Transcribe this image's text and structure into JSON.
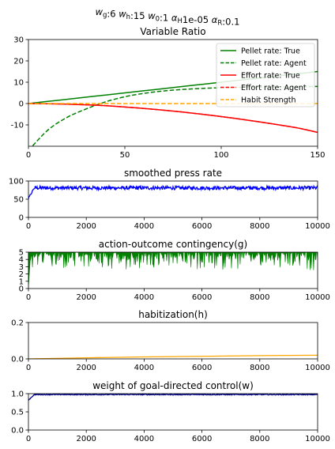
{
  "suptitle": "w_g:6 w_h:15 w_0:1 α_H1e-05 α_R:0.1",
  "suptitle_parts": [
    {
      "t": "w",
      "i": true
    },
    {
      "t": "g",
      "sub": true
    },
    {
      "t": ":6 "
    },
    {
      "t": "w",
      "i": true
    },
    {
      "t": "h",
      "sub": true
    },
    {
      "t": ":15 "
    },
    {
      "t": "w",
      "i": true
    },
    {
      "t": "0",
      "sub": true
    },
    {
      "t": ":1 "
    },
    {
      "t": "α",
      "i": true
    },
    {
      "t": "H",
      "sub": true
    },
    {
      "t": "1e-05 "
    },
    {
      "t": "α",
      "i": true
    },
    {
      "t": "R",
      "sub": true
    },
    {
      "t": ":0.1"
    }
  ],
  "colors": {
    "green": "#008000",
    "red": "#ff0000",
    "orange": "#ffa500",
    "blue": "#0000ff",
    "darkblue": "#00008b"
  },
  "chart_data": [
    {
      "type": "line",
      "title": "Variable Ratio",
      "xlim": [
        0,
        150
      ],
      "ylim": [
        -20,
        30
      ],
      "xticks": [
        0,
        50,
        100,
        150
      ],
      "yticks": [
        -10,
        0,
        10,
        20,
        30
      ],
      "legend_position": "top-right",
      "grid": false,
      "x": [
        0,
        10,
        20,
        30,
        40,
        50,
        60,
        70,
        80,
        90,
        100,
        110,
        120,
        130,
        140,
        150
      ],
      "series": [
        {
          "name": "Pellet rate: True",
          "color": "#008000",
          "style": "solid",
          "values": [
            0,
            1.0,
            2.0,
            3.0,
            4.0,
            5.0,
            6.0,
            7.0,
            8.0,
            9.0,
            10.0,
            11.0,
            12.0,
            13.0,
            14.0,
            15.0
          ]
        },
        {
          "name": "Pellet rate: Agent",
          "color": "#008000",
          "style": "dashed",
          "values": [
            -22,
            -12.5,
            -6.5,
            -2.5,
            0.8,
            3.2,
            4.8,
            5.9,
            6.6,
            7.1,
            7.4,
            7.6,
            7.7,
            7.8,
            7.9,
            8.0
          ]
        },
        {
          "name": "Effort rate: True",
          "color": "#ff0000",
          "style": "solid",
          "values": [
            0,
            -0.1,
            -0.3,
            -0.6,
            -1.0,
            -1.6,
            -2.3,
            -3.1,
            -4.0,
            -5.0,
            -6.1,
            -7.3,
            -8.6,
            -10.0,
            -11.5,
            -13.5
          ]
        },
        {
          "name": "Effort rate: Agent",
          "color": "#ff0000",
          "style": "dashed",
          "values": [
            0,
            -0.1,
            -0.3,
            -0.6,
            -1.0,
            -1.6,
            -2.3,
            -3.1,
            -4.0,
            -5.0,
            -6.1,
            -7.3,
            -8.6,
            -10.0,
            -11.5,
            -13.5
          ]
        },
        {
          "name": "Habit Strength",
          "color": "#ffa500",
          "style": "dashed",
          "values": [
            0,
            0,
            0,
            0,
            0,
            0,
            0,
            0,
            0,
            0,
            0,
            0,
            0,
            0,
            0,
            0
          ]
        }
      ]
    },
    {
      "type": "line",
      "title": "smoothed press rate",
      "xlim": [
        0,
        10000
      ],
      "ylim": [
        0,
        100
      ],
      "xticks": [
        0,
        2000,
        4000,
        6000,
        8000,
        10000
      ],
      "yticks": [
        0,
        50,
        100
      ],
      "series": [
        {
          "name": "",
          "color": "#0000ff",
          "noise_mean": 81,
          "noise_amp": 5,
          "start": 52,
          "style": "solid"
        }
      ]
    },
    {
      "type": "area",
      "title": "action-outcome contingency(g)",
      "xlim": [
        0,
        10000
      ],
      "ylim": [
        0,
        5
      ],
      "xticks": [
        0,
        2000,
        4000,
        6000,
        8000,
        10000
      ],
      "yticks": [
        0,
        1,
        2,
        3,
        4,
        5
      ],
      "series": [
        {
          "name": "",
          "color": "#008000",
          "upper": 5,
          "dip_low": 2.5
        }
      ]
    },
    {
      "type": "line",
      "title": "habitization(h)",
      "xlim": [
        0,
        10000
      ],
      "ylim": [
        0,
        0.2
      ],
      "xticks": [
        0,
        2000,
        4000,
        6000,
        8000,
        10000
      ],
      "yticks": [
        0.0,
        0.2
      ],
      "x": [
        0,
        2000,
        4000,
        6000,
        8000,
        10000
      ],
      "series": [
        {
          "name": "",
          "color": "#ffa500",
          "style": "solid",
          "values": [
            0.0,
            0.006,
            0.011,
            0.014,
            0.018,
            0.02
          ]
        }
      ]
    },
    {
      "type": "line",
      "title": "weight of goal-directed control(w)",
      "xlim": [
        0,
        10000
      ],
      "ylim": [
        0,
        1
      ],
      "xticks": [
        0,
        2000,
        4000,
        6000,
        8000,
        10000
      ],
      "yticks": [
        0.0,
        0.5,
        1.0
      ],
      "series": [
        {
          "name": "",
          "color": "#00008b",
          "noise_mean": 0.975,
          "noise_amp": 0.012,
          "start": 0.82,
          "style": "solid"
        }
      ]
    }
  ]
}
